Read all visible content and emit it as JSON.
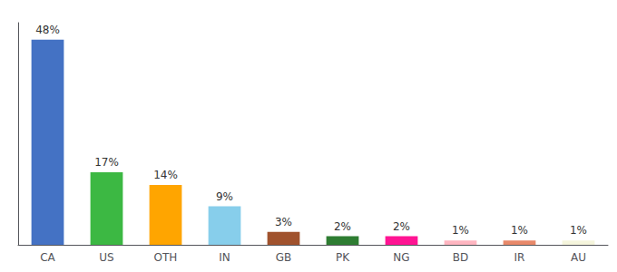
{
  "chart_data": {
    "type": "bar",
    "categories": [
      "CA",
      "US",
      "OTH",
      "IN",
      "GB",
      "PK",
      "NG",
      "BD",
      "IR",
      "AU"
    ],
    "values": [
      48,
      17,
      14,
      9,
      3,
      2,
      2,
      1,
      1,
      1
    ],
    "value_labels": [
      "48%",
      "17%",
      "14%",
      "9%",
      "3%",
      "2%",
      "2%",
      "1%",
      "1%",
      "1%"
    ],
    "colors": [
      "#4472C4",
      "#3CB843",
      "#FFA500",
      "#87CEEB",
      "#A0522D",
      "#2E7D32",
      "#FF1493",
      "#FFB6C1",
      "#E8896A",
      "#F5F5DC"
    ],
    "ylim": [
      0,
      52
    ],
    "yticks": [],
    "grid": false,
    "data_labels": true,
    "tick_labels": "x"
  }
}
